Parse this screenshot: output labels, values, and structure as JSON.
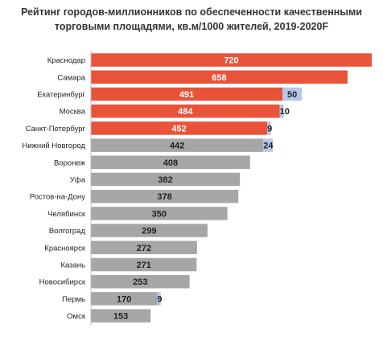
{
  "chart_data": {
    "type": "bar",
    "orientation": "horizontal",
    "stacked": true,
    "title_lines": [
      "Рейтинг городов-миллионников по обеспеченности качественными",
      "торговыми площадями, кв.м/1000 жителей, 2019-2020F"
    ],
    "xlabel": "",
    "ylabel": "",
    "xlim": [
      0,
      720
    ],
    "grid": false,
    "legend": "none",
    "categories": [
      "Краснодар",
      "Самара",
      "Екатеринбург",
      "Москва",
      "Санкт-Петербург",
      "Нижний Новгород",
      "Воронеж",
      "Уфа",
      "Ростов-на-Дону",
      "Челябинск",
      "Волгоград",
      "Красноярск",
      "Казань",
      "Новосибирск",
      "Пермь",
      "Омск"
    ],
    "series": [
      {
        "values": [
          720,
          658,
          491,
          484,
          452,
          442,
          408,
          382,
          378,
          350,
          299,
          272,
          271,
          253,
          170,
          153
        ],
        "colors": [
          "#E8533A",
          "#E8533A",
          "#E8533A",
          "#E8533A",
          "#E8533A",
          "#A6A6A6",
          "#A6A6A6",
          "#A6A6A6",
          "#A6A6A6",
          "#A6A6A6",
          "#A6A6A6",
          "#A6A6A6",
          "#A6A6A6",
          "#A6A6A6",
          "#A6A6A6",
          "#A6A6A6"
        ],
        "labels": [
          "720",
          "658",
          "491",
          "484",
          "452",
          "442",
          "408",
          "382",
          "378",
          "350",
          "299",
          "272",
          "271",
          "253",
          "170",
          "153"
        ],
        "label_colors": [
          "#ffffff",
          "#ffffff",
          "#ffffff",
          "#ffffff",
          "#ffffff",
          "#222222",
          "#222222",
          "#222222",
          "#222222",
          "#222222",
          "#222222",
          "#222222",
          "#222222",
          "#222222",
          "#222222",
          "#222222"
        ]
      },
      {
        "values": [
          0,
          0,
          50,
          10,
          9,
          24,
          0,
          0,
          0,
          0,
          0,
          0,
          0,
          0,
          9,
          0
        ],
        "color": "#B4C7E7",
        "labels": [
          "",
          "",
          "50",
          "10",
          "9",
          "24",
          "",
          "",
          "",
          "",
          "",
          "",
          "",
          "",
          "9",
          ""
        ],
        "label_color": "#222222"
      }
    ]
  }
}
